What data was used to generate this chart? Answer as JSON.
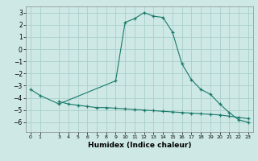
{
  "xlabel": "Humidex (Indice chaleur)",
  "ylabel": "",
  "background_color": "#cde8e5",
  "grid_color": "#aacfcc",
  "line_color": "#1a7a6a",
  "xlim": [
    -0.5,
    23.5
  ],
  "ylim": [
    -6.8,
    3.5
  ],
  "yticks": [
    -6,
    -5,
    -4,
    -3,
    -2,
    -1,
    0,
    1,
    2,
    3
  ],
  "xticks": [
    0,
    1,
    3,
    4,
    5,
    6,
    7,
    8,
    9,
    10,
    11,
    12,
    13,
    14,
    15,
    16,
    17,
    18,
    19,
    20,
    21,
    22,
    23
  ],
  "line1_x": [
    0,
    1,
    3,
    9,
    10,
    11,
    12,
    13,
    14,
    15,
    16,
    17,
    18,
    19,
    20,
    21,
    22,
    23
  ],
  "line1_y": [
    -3.3,
    -3.8,
    -4.5,
    -2.6,
    2.2,
    2.5,
    3.0,
    2.7,
    2.6,
    1.4,
    -1.2,
    -2.5,
    -3.3,
    -3.7,
    -4.5,
    -5.2,
    -5.8,
    -6.0
  ],
  "line2_x": [
    3,
    4,
    5,
    6,
    7,
    8,
    9,
    10,
    11,
    12,
    13,
    14,
    15,
    16,
    17,
    18,
    19,
    20,
    21,
    22,
    23
  ],
  "line2_y": [
    -4.3,
    -4.5,
    -4.6,
    -4.7,
    -4.8,
    -4.8,
    -4.85,
    -4.9,
    -4.95,
    -5.0,
    -5.05,
    -5.1,
    -5.15,
    -5.2,
    -5.25,
    -5.3,
    -5.35,
    -5.4,
    -5.5,
    -5.6,
    -5.7
  ]
}
